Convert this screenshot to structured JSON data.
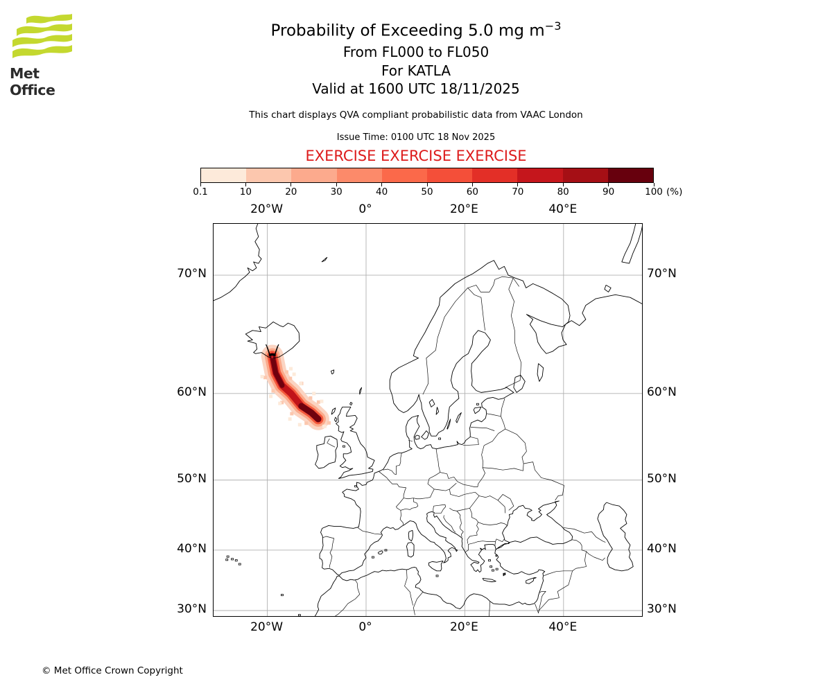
{
  "header": {
    "logo_text": "Met Office",
    "title_main": "Probability of Exceeding 5.0 mg m",
    "title_superscript": "−3",
    "subtitle_flight_levels": "From FL000 to FL050",
    "subtitle_volcano": "For KATLA",
    "subtitle_valid": "Valid at 1600 UTC 18/11/2025",
    "note": "This chart displays QVA compliant probabilistic data from VAAC London",
    "issue_time": "Issue Time: 0100 UTC 18 Nov 2025",
    "exercise_banner": "EXERCISE EXERCISE EXERCISE"
  },
  "colorbar": {
    "tick_labels": [
      "0.1",
      "10",
      "20",
      "30",
      "40",
      "50",
      "60",
      "70",
      "80",
      "90",
      "100"
    ],
    "unit_label": "(%)",
    "colors": [
      "#fdeada",
      "#fcc7ae",
      "#fcaa8d",
      "#fc8a6a",
      "#fb694a",
      "#f44f39",
      "#e32f27",
      "#c5161c",
      "#a50f15",
      "#67000d"
    ]
  },
  "map": {
    "x_tick_labels": [
      "20°W",
      "0°",
      "20°E",
      "40°E"
    ],
    "x_tick_lons": [
      -20,
      0,
      20,
      40
    ],
    "y_tick_labels": [
      "70°N",
      "60°N",
      "50°N",
      "40°N",
      "30°N"
    ],
    "y_tick_lats": [
      70,
      60,
      50,
      40,
      30
    ],
    "grid_color": "#b0b0b0",
    "coast_color": "#000000"
  },
  "chart_data": {
    "type": "heatmap",
    "title": "Probability of Exceeding 5.0 mg m⁻³",
    "subtitle": "From FL000 to FL050, For KATLA, Valid at 1600 UTC 18/11/2025",
    "legend_levels_percent": [
      0.1,
      10,
      20,
      30,
      40,
      50,
      60,
      70,
      80,
      90,
      100
    ],
    "legend_colors": [
      "#fdeada",
      "#fcc7ae",
      "#fcaa8d",
      "#fc8a6a",
      "#fb694a",
      "#f44f39",
      "#e32f27",
      "#c5161c",
      "#a50f15",
      "#67000d"
    ],
    "legend_unit": "%",
    "extent": {
      "lon_min": -31,
      "lon_max": 56,
      "lat_min": 29,
      "lat_max": 73.4
    },
    "projection": "mercator",
    "gridlines": {
      "lons": [
        -20,
        0,
        20,
        40
      ],
      "lats": [
        30,
        40,
        50,
        60,
        70
      ]
    },
    "volcano": {
      "name": "KATLA",
      "lat": 63.6,
      "lon": -19.0
    },
    "plume_track": [
      [
        63.6,
        -19.0
      ],
      [
        62.0,
        -18.3
      ],
      [
        60.8,
        -17.0
      ],
      [
        60.0,
        -15.2
      ],
      [
        58.7,
        -13.1
      ],
      [
        58.0,
        -11.1
      ],
      [
        57.3,
        -9.7
      ]
    ],
    "plume_description": "Elongated high-probability (>90% core) ash plume extending south-east from Katla, Iceland toward north-west Scotland, with probabilities decreasing from dark red core to pale pink fringe"
  },
  "footer": {
    "copyright": "© Met Office Crown Copyright"
  }
}
